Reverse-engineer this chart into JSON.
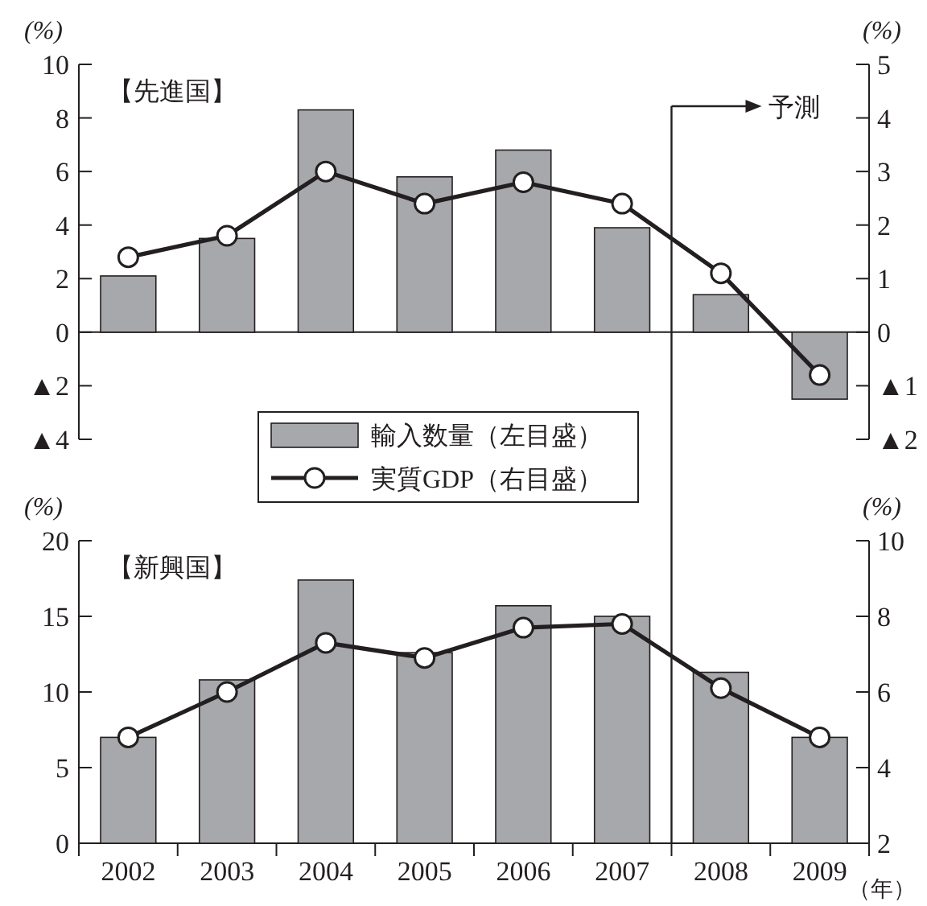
{
  "chart_data": [
    {
      "type": "bar",
      "title": "【先進国】",
      "ylabel": "(%)",
      "y2label": "(%)",
      "x": [
        2002,
        2003,
        2004,
        2005,
        2006,
        2007,
        2008,
        2009
      ],
      "xlim": [
        2001.5,
        2009.5
      ],
      "ylim": [
        -4,
        10
      ],
      "yticks": [
        {
          "value": -4,
          "label": "▲4"
        },
        {
          "value": -2,
          "label": "▲2"
        },
        0,
        2,
        4,
        6,
        8,
        10
      ],
      "y2lim": [
        -2,
        5
      ],
      "y2ticks": [
        {
          "value": -2,
          "label": "▲2"
        },
        {
          "value": -1,
          "label": "▲1"
        },
        0,
        1,
        2,
        3,
        4,
        5
      ],
      "tick_labels": "y",
      "legend": "bottom",
      "ref_lines": [
        {
          "axis": "x",
          "value": 2007.5,
          "label": "予測"
        }
      ],
      "series": [
        {
          "name": "輸入数量（左目盛）",
          "color": "#a7a8ab",
          "values": [
            2.1,
            3.5,
            8.3,
            5.8,
            6.8,
            3.9,
            1.4,
            -2.5
          ]
        },
        {
          "name": "実質GDP（右目盛）",
          "type": "line",
          "axis": "y2",
          "marker": "circle",
          "color": "#231f20",
          "values": [
            1.4,
            1.8,
            3.0,
            2.4,
            2.8,
            2.4,
            1.1,
            -0.8
          ]
        }
      ]
    },
    {
      "type": "bar",
      "title": "【新興国】",
      "ylabel": "(%)",
      "y2label": "(%)",
      "xlabel": "（年）",
      "x": [
        2002,
        2003,
        2004,
        2005,
        2006,
        2007,
        2008,
        2009
      ],
      "xlim": [
        2001.5,
        2009.5
      ],
      "xticks": [
        {
          "value": 2001.5,
          "label": null
        },
        2002,
        {
          "value": 2002.5,
          "label": null
        },
        2003,
        {
          "value": 2003.5,
          "label": null
        },
        2004,
        {
          "value": 2004.5,
          "label": null
        },
        2005,
        {
          "value": 2005.5,
          "label": null
        },
        2006,
        {
          "value": 2006.5,
          "label": null
        },
        2007,
        {
          "value": 2007.5,
          "label": null
        },
        2008,
        {
          "value": 2008.5,
          "label": null
        },
        2009,
        {
          "value": 2009.5,
          "label": null
        }
      ],
      "ylim": [
        0,
        20
      ],
      "yticks": [
        0,
        5,
        10,
        15,
        20
      ],
      "y2lim": [
        2,
        10
      ],
      "y2ticks": [
        2,
        4,
        6,
        8,
        10
      ],
      "ref_lines": [
        {
          "axis": "x",
          "value": 2007.5
        }
      ],
      "series": [
        {
          "color": "#a7a8ab",
          "values": [
            7.0,
            10.8,
            17.4,
            12.6,
            15.7,
            15.0,
            11.3,
            7.0
          ]
        },
        {
          "type": "line",
          "axis": "y2",
          "marker": "circle",
          "color": "#231f20",
          "values": [
            4.8,
            6.0,
            7.3,
            6.9,
            7.7,
            7.8,
            6.1,
            4.8
          ]
        }
      ]
    }
  ]
}
